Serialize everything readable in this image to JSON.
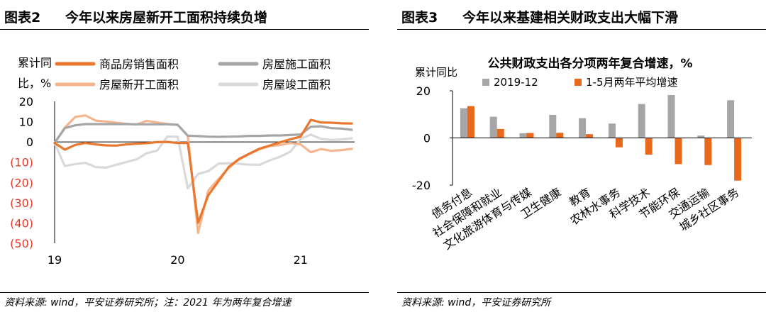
{
  "left": {
    "tag": "图表2",
    "title": "今年以来房屋新开工面积持续负增",
    "source": "资料来源: wind，平安证券研究所；注：2021 年为两年复合增速",
    "chart_data": {
      "type": "line",
      "ylabel": "累计同比，%",
      "ylim": [
        -50,
        20
      ],
      "yticks": [
        20,
        10,
        0,
        -10,
        -20,
        -30,
        -40,
        -50
      ],
      "ytick_labels": [
        "20",
        "10",
        "0",
        "(10)",
        "(20)",
        "(30)",
        "(40)",
        "(50)"
      ],
      "negative_tick_color": "#e8392a",
      "xlim": [
        0,
        29
      ],
      "xticks": [
        0,
        12,
        24
      ],
      "xtick_labels": [
        "19",
        "20",
        "21"
      ],
      "legend_placement": "top",
      "series": [
        {
          "name": "商品房销售面积",
          "color": "#e9782e",
          "values": [
            -0.5,
            -3.8,
            -1.5,
            -0.5,
            -1.2,
            -1.7,
            -1.8,
            -1.2,
            -0.9,
            -0.6,
            -0.1,
            0.0,
            -0.5,
            -0.5,
            -39.9,
            -26.3,
            -19.3,
            -12.3,
            -8.4,
            -5.8,
            -3.3,
            -1.8,
            -0.2,
            1.3,
            2.6,
            10.9,
            9.6,
            9.5,
            9.2,
            9.1
          ]
        },
        {
          "name": "房屋施工面积",
          "color": "#a6a6a6",
          "values": [
            -0.5,
            6.8,
            8.2,
            8.8,
            8.8,
            8.8,
            8.8,
            8.8,
            8.7,
            8.7,
            8.7,
            8.7,
            8.5,
            3.1,
            2.9,
            2.6,
            2.5,
            2.6,
            2.7,
            3.0,
            3.0,
            3.2,
            3.2,
            3.4,
            3.7,
            7.5,
            7.7,
            6.8,
            6.6,
            6.0
          ]
        },
        {
          "name": "房屋新开工面积",
          "color": "#f5b58e",
          "values": [
            -0.5,
            7.1,
            12.3,
            13.1,
            10.5,
            10.1,
            9.5,
            8.9,
            8.6,
            10.4,
            9.6,
            8.8,
            8.5,
            3.0,
            -44.9,
            -24.0,
            -18.3,
            -12.8,
            -8.6,
            -6.0,
            -3.6,
            -2.0,
            -1.5,
            -0.5,
            -1.2,
            -5.1,
            -3.5,
            -4.4,
            -4.0,
            -3.4
          ]
        },
        {
          "name": "房屋竣工面积",
          "color": "#d9d9d9",
          "values": [
            -0.5,
            -11.9,
            -10.9,
            -10.3,
            -12.4,
            -12.7,
            -11.3,
            -9.9,
            -8.6,
            -5.5,
            -4.3,
            2.6,
            2.6,
            -22.9,
            -15.8,
            -14.4,
            -10.7,
            -10.5,
            -10.8,
            -11.2,
            -11.3,
            -9.1,
            -7.3,
            -4.9,
            1.5,
            3.6,
            1.5,
            1.0,
            1.2,
            1.8
          ]
        }
      ]
    }
  },
  "right": {
    "tag": "图表3",
    "title": "今年以来基建相关财政支出大幅下滑",
    "source": "资料来源: wind，平安证券研究所",
    "chart_data": {
      "type": "bar",
      "title": "公共财政支出各分项两年复合增速，%",
      "ylabel": "累计同比",
      "ylim": [
        -20,
        20
      ],
      "yticks": [
        20,
        0,
        -20
      ],
      "legend_placement": "top",
      "categories": [
        "债务付息",
        "社会保障和就业",
        "文化旅游体育与传媒",
        "卫生健康",
        "教育",
        "农林水事务",
        "科学技术",
        "节能环保",
        "交通运输",
        "城乡社区事务"
      ],
      "series": [
        {
          "name": "2019-12",
          "color": "#a6a6a6",
          "values": [
            12.6,
            9.0,
            2.0,
            9.8,
            8.4,
            6.1,
            14.4,
            18.2,
            1.0,
            16.0
          ]
        },
        {
          "name": "1-5月两年平均增速",
          "color": "#e9681c",
          "values": [
            13.5,
            3.8,
            2.1,
            2.2,
            1.6,
            -4.0,
            -7.1,
            -11.1,
            -11.5,
            -18.1
          ]
        }
      ]
    }
  }
}
